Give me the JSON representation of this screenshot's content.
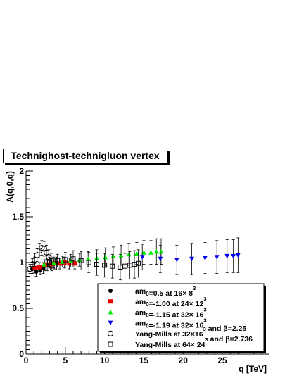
{
  "chart_data": {
    "type": "scatter",
    "title": "Technighost-technigluon vertex",
    "xlabel": "q [TeV]",
    "ylabel": "A(q,0,q)",
    "xlim": [
      0,
      31
    ],
    "ylim": [
      0,
      2
    ],
    "x_ticks": [
      "0",
      "5",
      "10",
      "15",
      "20",
      "25"
    ],
    "y_ticks": [
      "0",
      "0.5",
      "1",
      "1.5",
      "2"
    ],
    "grid": false,
    "legend_position": "bottom-right",
    "series": [
      {
        "name": "am0=0.5 at 16×8³",
        "marker": "filled-circle",
        "color": "#000000",
        "points": [
          {
            "x": 0.8,
            "y": 0.93,
            "err": 0.05
          },
          {
            "x": 1.3,
            "y": 0.9,
            "err": 0.05
          },
          {
            "x": 1.8,
            "y": 0.92,
            "err": 0.05
          },
          {
            "x": 2.2,
            "y": 0.94,
            "err": 0.06
          },
          {
            "x": 2.7,
            "y": 0.97,
            "err": 0.06
          },
          {
            "x": 3.3,
            "y": 0.98,
            "err": 0.07
          },
          {
            "x": 3.9,
            "y": 0.99,
            "err": 0.07
          }
        ]
      },
      {
        "name": "am0=-1.00 at 24×12³",
        "marker": "filled-square",
        "color": "#ee0000",
        "points": [
          {
            "x": 1.1,
            "y": 0.94,
            "err": 0.05
          },
          {
            "x": 1.7,
            "y": 0.95,
            "err": 0.05
          },
          {
            "x": 2.4,
            "y": 0.97,
            "err": 0.06
          },
          {
            "x": 3.1,
            "y": 0.98,
            "err": 0.06
          },
          {
            "x": 3.6,
            "y": 0.99,
            "err": 0.06
          },
          {
            "x": 4.3,
            "y": 0.99,
            "err": 0.06
          },
          {
            "x": 4.9,
            "y": 1.0,
            "err": 0.06
          },
          {
            "x": 5.5,
            "y": 0.99,
            "err": 0.06
          },
          {
            "x": 6.2,
            "y": 0.99,
            "err": 0.06
          }
        ]
      },
      {
        "name": "am0=-1.15 at 32×16³",
        "marker": "filled-triangle-up",
        "color": "#00ee00",
        "points": [
          {
            "x": 2.3,
            "y": 0.98,
            "err": 0.05
          },
          {
            "x": 3.5,
            "y": 1.0,
            "err": 0.06
          },
          {
            "x": 4.6,
            "y": 1.01,
            "err": 0.06
          },
          {
            "x": 5.7,
            "y": 1.02,
            "err": 0.07
          },
          {
            "x": 6.8,
            "y": 1.03,
            "err": 0.07
          },
          {
            "x": 7.9,
            "y": 1.04,
            "err": 0.08
          },
          {
            "x": 9.0,
            "y": 1.05,
            "err": 0.09
          },
          {
            "x": 10.1,
            "y": 1.06,
            "err": 0.1
          },
          {
            "x": 11.1,
            "y": 1.07,
            "err": 0.1
          },
          {
            "x": 12.1,
            "y": 1.08,
            "err": 0.11
          },
          {
            "x": 13.1,
            "y": 1.09,
            "err": 0.12
          },
          {
            "x": 14.1,
            "y": 1.1,
            "err": 0.12
          },
          {
            "x": 15.0,
            "y": 1.11,
            "err": 0.13
          },
          {
            "x": 15.9,
            "y": 1.11,
            "err": 0.13
          },
          {
            "x": 16.6,
            "y": 1.12,
            "err": 0.14
          },
          {
            "x": 17.2,
            "y": 1.12,
            "err": 0.14
          }
        ]
      },
      {
        "name": "am0=-1.19 at 32×16³",
        "marker": "filled-triangle-down",
        "color": "#0000ee",
        "points": [
          {
            "x": 14.8,
            "y": 1.06,
            "err": 0.14
          },
          {
            "x": 17.1,
            "y": 1.04,
            "err": 0.15
          },
          {
            "x": 19.2,
            "y": 1.03,
            "err": 0.16
          },
          {
            "x": 21.1,
            "y": 1.04,
            "err": 0.17
          },
          {
            "x": 22.8,
            "y": 1.05,
            "err": 0.17
          },
          {
            "x": 24.3,
            "y": 1.06,
            "err": 0.18
          },
          {
            "x": 25.6,
            "y": 1.07,
            "err": 0.18
          },
          {
            "x": 26.4,
            "y": 1.07,
            "err": 0.18
          },
          {
            "x": 27.0,
            "y": 1.08,
            "err": 0.19
          }
        ]
      },
      {
        "name": "Yang-Mills at 32×16³ and β=2.25",
        "marker": "open-circle",
        "color": "#000000",
        "points": [
          {
            "x": 0.5,
            "y": 0.93,
            "err": 0.05
          },
          {
            "x": 0.8,
            "y": 0.98,
            "err": 0.06
          },
          {
            "x": 1.1,
            "y": 1.03,
            "err": 0.07
          },
          {
            "x": 1.4,
            "y": 1.08,
            "err": 0.07
          },
          {
            "x": 1.7,
            "y": 1.13,
            "err": 0.08
          },
          {
            "x": 2.0,
            "y": 1.16,
            "err": 0.08
          },
          {
            "x": 2.3,
            "y": 1.15,
            "err": 0.08
          },
          {
            "x": 2.6,
            "y": 1.11,
            "err": 0.08
          },
          {
            "x": 2.9,
            "y": 1.06,
            "err": 0.08
          },
          {
            "x": 3.2,
            "y": 1.02,
            "err": 0.08
          }
        ]
      },
      {
        "name": "Yang-Mills at 64×24³ and β=2.736",
        "marker": "open-square",
        "color": "#000000",
        "points": [
          {
            "x": 3.0,
            "y": 1.0,
            "err": 0.06
          },
          {
            "x": 4.0,
            "y": 1.02,
            "err": 0.07
          },
          {
            "x": 5.0,
            "y": 1.03,
            "err": 0.08
          },
          {
            "x": 6.0,
            "y": 1.04,
            "err": 0.09
          },
          {
            "x": 7.0,
            "y": 1.02,
            "err": 0.1
          },
          {
            "x": 8.0,
            "y": 1.0,
            "err": 0.11
          },
          {
            "x": 9.0,
            "y": 0.98,
            "err": 0.12
          },
          {
            "x": 10.0,
            "y": 0.97,
            "err": 0.13
          },
          {
            "x": 11.0,
            "y": 0.96,
            "err": 0.13
          },
          {
            "x": 12.0,
            "y": 0.95,
            "err": 0.14
          },
          {
            "x": 12.6,
            "y": 0.96,
            "err": 0.14
          },
          {
            "x": 13.2,
            "y": 0.97,
            "err": 0.15
          },
          {
            "x": 13.8,
            "y": 0.98,
            "err": 0.15
          },
          {
            "x": 14.3,
            "y": 0.99,
            "err": 0.15
          }
        ]
      }
    ]
  },
  "legend_entries": [
    {
      "pre": "am",
      "sub": "0",
      "mid": "=0.5 at 16",
      "x": "×",
      "base": " 8",
      "sup": "3",
      "post": ""
    },
    {
      "pre": "am",
      "sub": "0",
      "mid": "=-1.00 at 24",
      "x": "×",
      "base": " 12",
      "sup": "3",
      "post": ""
    },
    {
      "pre": "am",
      "sub": "0",
      "mid": "=-1.15 at 32",
      "x": "×",
      "base": " 16",
      "sup": "3",
      "post": ""
    },
    {
      "pre": "am",
      "sub": "0",
      "mid": "=-1.19 at 32",
      "x": "×",
      "base": " 16",
      "sup": "3",
      "post": ""
    },
    {
      "pre": "",
      "sub": "",
      "mid": "Yang-Mills at 32",
      "x": "×",
      "base": "16",
      "sup": "3",
      "post": " and β=2.25"
    },
    {
      "pre": "",
      "sub": "",
      "mid": "Yang-Mills at 64",
      "x": "×",
      "base": " 24",
      "sup": "3",
      "post": " and β=2.736"
    }
  ]
}
